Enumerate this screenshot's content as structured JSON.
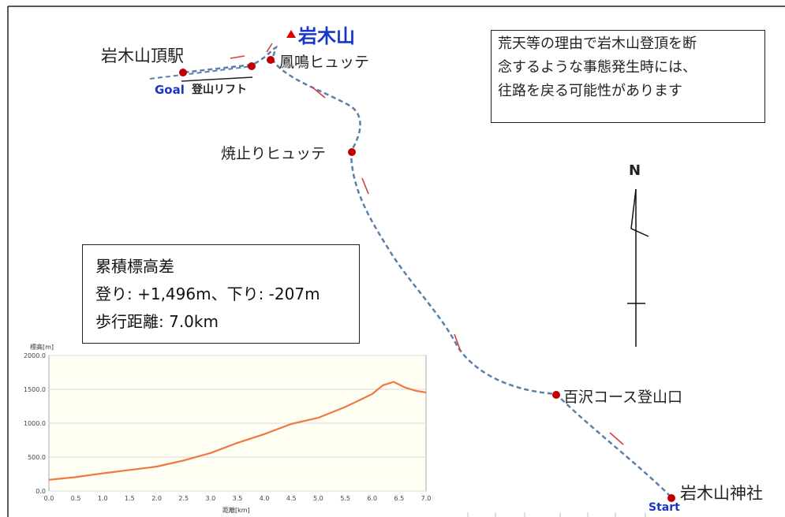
{
  "map": {
    "peak_label": "岩木山",
    "places": {
      "summit_station": "岩木山頂駅",
      "goal": "Goal",
      "lift": "登山リフト",
      "houmei_hut": "鳳鳴ヒュッテ",
      "yakedomari_hut": "焼止りヒュッテ",
      "hyakuzawa_trailhead": "百沢コース登山口",
      "shrine": "岩木山神社",
      "start": "Start"
    },
    "north_label": "N",
    "notice_lines": [
      "荒天等の理由で岩木山登頂を断",
      "念するような事態発生時には、",
      "往路を戻る可能性があります"
    ],
    "stats": {
      "title": "累積標高差",
      "climb": "登り: +1,496m、下り: -207m",
      "distance": "歩行距離: 7.0km"
    },
    "colors": {
      "route": "#5a7fa8",
      "point": "#c00000",
      "peak_text": "#1a35c8",
      "arrow": "#d04040",
      "profile_line": "#f07840"
    }
  },
  "chart_data": {
    "type": "line",
    "xlabel": "距離[km]",
    "ylabel": "標高[m]",
    "xlim": [
      0,
      7
    ],
    "ylim": [
      0,
      2000
    ],
    "x_ticks": [
      "0.0",
      "0.5",
      "1.0",
      "1.5",
      "2.0",
      "2.5",
      "3.0",
      "3.5",
      "4.0",
      "4.5",
      "5.0",
      "5.5",
      "6.0",
      "6.5",
      "7.0"
    ],
    "y_ticks": [
      "0.0",
      "500.0",
      "1000.0",
      "1500.0",
      "2000.0"
    ],
    "x": [
      0,
      0.5,
      1.0,
      1.5,
      1.8,
      2.0,
      2.5,
      3.0,
      3.5,
      4.0,
      4.5,
      5.0,
      5.5,
      6.0,
      6.2,
      6.4,
      6.6,
      6.8,
      7.0
    ],
    "values": [
      165,
      205,
      260,
      310,
      340,
      360,
      450,
      560,
      710,
      840,
      990,
      1080,
      1240,
      1430,
      1560,
      1610,
      1530,
      1480,
      1455
    ],
    "grid": true
  }
}
